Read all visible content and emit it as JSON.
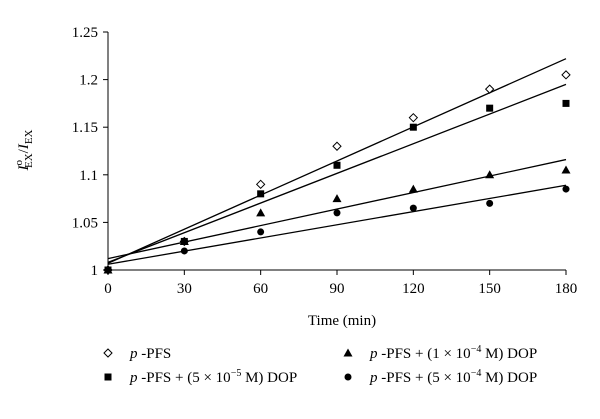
{
  "chart_data": {
    "type": "scatter",
    "xlabel": "Time (min)",
    "ylabel": {
      "main": "I",
      "sup": "o",
      "sub": "EX",
      "sep": "/",
      "main2": "I",
      "sub2": "EX"
    },
    "xlim": [
      0,
      180
    ],
    "ylim": [
      1.0,
      1.25
    ],
    "xticks": [
      0,
      30,
      60,
      90,
      120,
      150,
      180
    ],
    "yticks": [
      "1",
      "1.05",
      "1.1",
      "1.15",
      "1.2",
      "1.25"
    ],
    "grid": false,
    "legend_position": "bottom",
    "series": [
      {
        "name": "p -PFS",
        "label": {
          "italic": "p",
          "rest": " -PFS"
        },
        "marker": "diamond-open",
        "x": [
          0,
          30,
          60,
          90,
          120,
          150,
          180
        ],
        "y": [
          1.0,
          1.03,
          1.09,
          1.13,
          1.16,
          1.19,
          1.205
        ],
        "fit": [
          1.007,
          1.222
        ]
      },
      {
        "name": "p -PFS + (5 × 10−5 M) DOP",
        "label": {
          "italic": "p",
          "rest": " -PFS + (5 × 10",
          "sup": "−5",
          "after": " M) DOP"
        },
        "marker": "square",
        "x": [
          0,
          30,
          60,
          90,
          120,
          150,
          180
        ],
        "y": [
          1.0,
          1.03,
          1.08,
          1.11,
          1.15,
          1.17,
          1.175
        ],
        "fit": [
          1.008,
          1.195
        ]
      },
      {
        "name": "p -PFS + (1 × 10−4 M) DOP",
        "label": {
          "italic": "p",
          "rest": " -PFS + (1 × 10",
          "sup": "−4",
          "after": " M) DOP"
        },
        "marker": "triangle",
        "x": [
          0,
          30,
          60,
          90,
          120,
          150,
          180
        ],
        "y": [
          1.0,
          1.03,
          1.06,
          1.075,
          1.085,
          1.1,
          1.105
        ],
        "fit": [
          1.012,
          1.116
        ]
      },
      {
        "name": "p -PFS + (5 × 10−4 M) DOP",
        "label": {
          "italic": "p",
          "rest": " -PFS + (5 × 10",
          "sup": "−4",
          "after": " M) DOP"
        },
        "marker": "circle",
        "x": [
          0,
          30,
          60,
          90,
          120,
          150,
          180
        ],
        "y": [
          1.0,
          1.02,
          1.04,
          1.06,
          1.065,
          1.07,
          1.085
        ],
        "fit": [
          1.006,
          1.089
        ]
      }
    ]
  }
}
